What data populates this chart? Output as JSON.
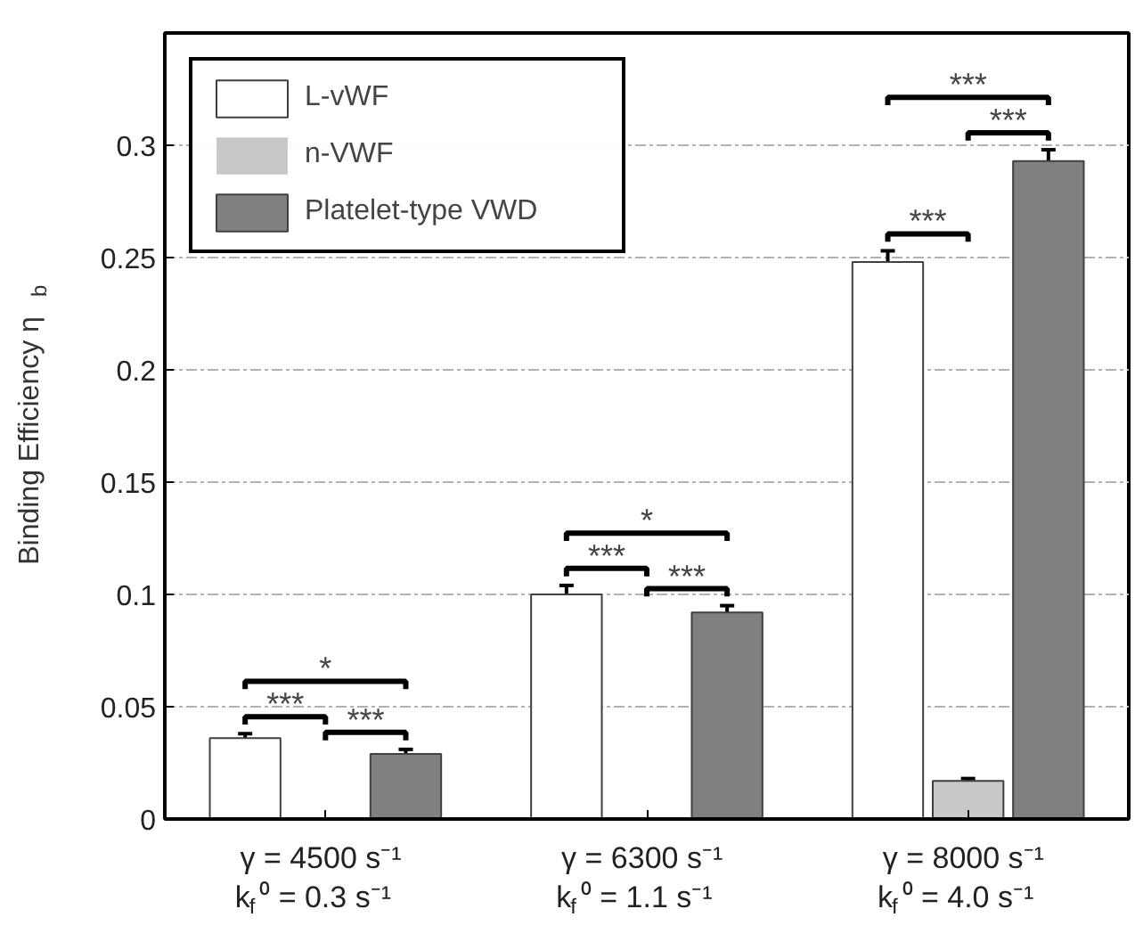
{
  "chart_data": {
    "type": "bar",
    "ylabel": "Binding Efficiency η$_{b}$",
    "categories": [
      "γ = 4500 s⁻¹\nk$_{f}$⁰ = 0.3 s⁻¹",
      "γ = 6300 s⁻¹\nk$_{f}$⁰ = 1.1 s⁻¹",
      "γ = 8000 s⁻¹\nk$_{f}$⁰ = 4.0 s⁻¹"
    ],
    "series": [
      {
        "name": "L-vWF",
        "color": "#ffffff",
        "values": [
          0.036,
          0.1,
          0.248
        ],
        "errors": [
          0.002,
          0.004,
          0.005
        ]
      },
      {
        "name": "n-VWF",
        "color": "#c8c8c8",
        "values": [
          0,
          0,
          0.017
        ],
        "errors": [
          null,
          null,
          0.001
        ]
      },
      {
        "name": "Platelet-type VWD",
        "color": "#808080",
        "values": [
          0.029,
          0.092,
          0.293
        ],
        "errors": [
          0.002,
          0.003,
          0.005
        ]
      }
    ],
    "ylim": [
      0,
      0.35
    ],
    "yticks": [
      0,
      0.05,
      0.1,
      0.15,
      0.2,
      0.25,
      0.3
    ],
    "grid": "y",
    "legend": "top left",
    "annotations": [
      "***",
      "***",
      "*",
      "***",
      "***",
      "*",
      "***",
      "***",
      "***"
    ]
  }
}
